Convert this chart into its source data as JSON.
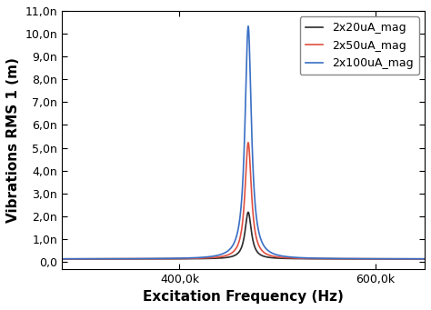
{
  "title": "",
  "xlabel": "Excitation Frequency (Hz)",
  "ylabel": "Vibrations RMS 1 (m)",
  "xlim": [
    280000,
    650000
  ],
  "ylim": [
    -3e-10,
    1.1e-08
  ],
  "yticks": [
    0,
    1e-09,
    2e-09,
    3e-09,
    4e-09,
    5e-09,
    6e-09,
    7e-09,
    8e-09,
    9e-09,
    1e-08,
    1.1e-08
  ],
  "ytick_labels": [
    "0,0",
    "1,0n",
    "2,0n",
    "3,0n",
    "4,0n",
    "5,0n",
    "6,0n",
    "7,0n",
    "8,0n",
    "9,0n",
    "10,0n",
    "11,0n"
  ],
  "xticks": [
    400000,
    600000
  ],
  "xtick_labels": [
    "400,0k",
    "600,0k"
  ],
  "resonance_freq": 470000,
  "Q_factor": 60,
  "baseline": 1.3e-10,
  "series": [
    {
      "label": "2x20uA_mag",
      "amplitude": 2.05e-09,
      "color": "#2b2b2b",
      "linewidth": 1.2
    },
    {
      "label": "2x50uA_mag",
      "amplitude": 5.1e-09,
      "color": "#e05040",
      "linewidth": 1.2
    },
    {
      "label": "2x100uA_mag",
      "amplitude": 1.02e-08,
      "color": "#3a6fc4",
      "linewidth": 1.2
    }
  ],
  "background_color": "#ffffff",
  "legend_loc": "upper right",
  "legend_fontsize": 9,
  "axis_fontsize": 11,
  "tick_fontsize": 9
}
